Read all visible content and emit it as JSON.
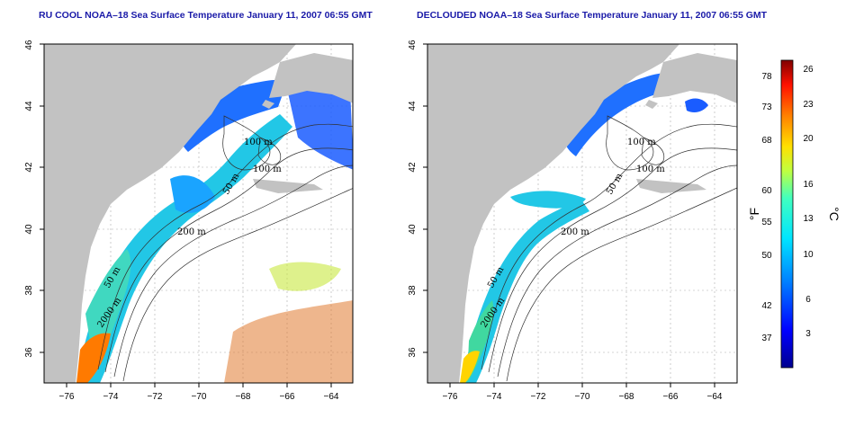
{
  "panels": [
    {
      "id": "left",
      "title": "RU COOL NOAA–18 Sea Surface Temperature January 11, 2007 06:55 GMT",
      "contour_labels": [
        "100 m",
        "100 m",
        "50 m",
        "200 m",
        "50 m",
        "2000 m"
      ]
    },
    {
      "id": "right",
      "title": "DECLOUDED NOAA–18 Sea Surface Temperature January 11, 2007 06:55 GMT",
      "contour_labels": [
        "100 m",
        "100 m",
        "50 m",
        "200 m",
        "50 m",
        "2000 m"
      ]
    }
  ],
  "axes": {
    "x_ticks": [
      "−76",
      "−74",
      "−72",
      "−70",
      "−68",
      "−66",
      "−64"
    ],
    "y_ticks": [
      "36",
      "38",
      "40",
      "42",
      "44",
      "46"
    ],
    "lon_range": [
      -77,
      -63
    ],
    "lat_range": [
      35,
      46
    ]
  },
  "colorbar": {
    "fahrenheit_label": "°F",
    "celsius_label": "°C",
    "fahrenheit_ticks": [
      "78",
      "73",
      "68",
      "60",
      "55",
      "50",
      "42",
      "37"
    ],
    "celsius_ticks": [
      "26",
      "23",
      "20",
      "16",
      "13",
      "10",
      "6",
      "3"
    ],
    "range_celsius": [
      0,
      27
    ]
  }
}
